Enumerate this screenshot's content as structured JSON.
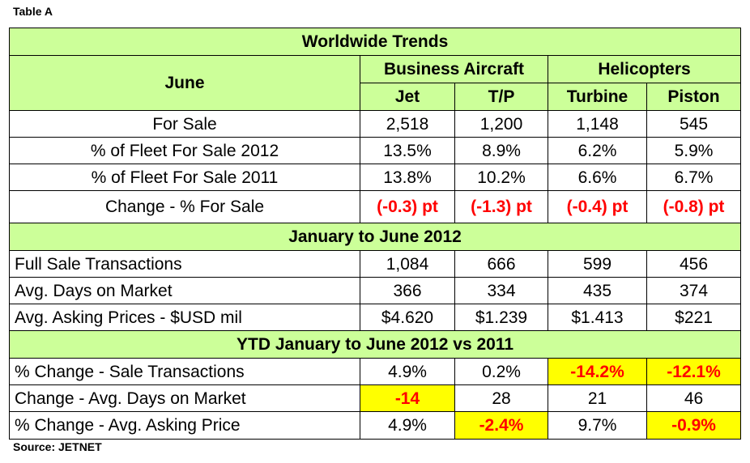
{
  "caption": "Table A",
  "title": "Worldwide Trends",
  "row_header": "June",
  "group_business": "Business Aircraft",
  "group_helicopters": "Helicopters",
  "columns": [
    "Jet",
    "T/P",
    "Turbine",
    "Piston"
  ],
  "section1": {
    "rows": [
      {
        "label": "For Sale",
        "values": [
          "2,518",
          "1,200",
          "1,148",
          "545"
        ]
      },
      {
        "label": "% of Fleet For Sale 2012",
        "values": [
          "13.5%",
          "8.9%",
          "6.2%",
          "5.9%"
        ]
      },
      {
        "label": "% of Fleet For Sale 2011",
        "values": [
          "13.8%",
          "10.2%",
          "6.6%",
          "6.7%"
        ]
      },
      {
        "label": "Change - % For Sale",
        "values": [
          "(-0.3) pt",
          "(-1.3) pt",
          "(-0.4) pt",
          "(-0.8) pt"
        ]
      }
    ]
  },
  "section2": {
    "title": "January to June 2012",
    "rows": [
      {
        "label": "Full Sale Transactions",
        "values": [
          "1,084",
          "666",
          "599",
          "456"
        ]
      },
      {
        "label": "Avg. Days on Market",
        "values": [
          "366",
          "334",
          "435",
          "374"
        ]
      },
      {
        "label": "Avg. Asking Prices - $USD mil",
        "values": [
          "$4.620",
          "$1.239",
          "$1.413",
          "$221"
        ]
      }
    ]
  },
  "section3": {
    "title": "YTD January to June 2012 vs 2011",
    "rows": [
      {
        "label": "% Change  - Sale Transactions",
        "values": [
          "4.9%",
          "0.2%",
          "-14.2%",
          "-12.1%"
        ]
      },
      {
        "label": "Change - Avg. Days on Market",
        "values": [
          "-14",
          "28",
          "21",
          "46"
        ]
      },
      {
        "label": "% Change - Avg. Asking Price",
        "values": [
          "4.9%",
          "-2.4%",
          "9.7%",
          "-0.9%"
        ]
      }
    ]
  },
  "source": "Source: JETNET",
  "colors": {
    "header_green": "#ccff99",
    "highlight_yellow": "#ffff00",
    "negative_red": "#ff0000"
  }
}
